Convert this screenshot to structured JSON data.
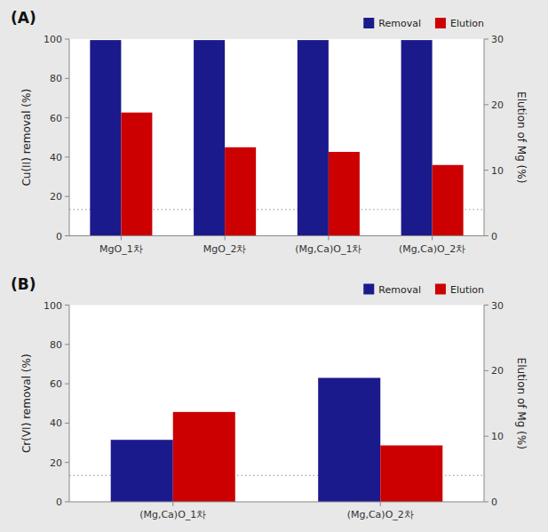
{
  "chart_data": [
    {
      "type": "bar",
      "title": "(A)",
      "categories": [
        "MgO_1차",
        "MgO_2차",
        "(Mg,Ca)O_1차",
        "(Mg,Ca)O_2차"
      ],
      "series": [
        {
          "name": "Removal",
          "color": "#1a1a8c",
          "values": [
            99.5,
            99.5,
            99.5,
            99.5
          ]
        },
        {
          "name": "Elution",
          "color": "#cc0000",
          "values": [
            18.8,
            13.5,
            12.8,
            10.8
          ],
          "axis": "y2"
        }
      ],
      "y_label": "Cu(II) removal (%)",
      "y2_label": "Elution of Mg (%)",
      "ylim": [
        0,
        100
      ],
      "yticks": [
        0,
        20,
        40,
        60,
        80,
        100
      ],
      "y2lim": [
        0,
        30
      ],
      "y2ticks": [
        0,
        10,
        20,
        30
      ],
      "y2_reference_line": 4.0,
      "legend": "upper-right",
      "grid": false
    },
    {
      "type": "bar",
      "title": "(B)",
      "categories": [
        "(Mg,Ca)O_1차",
        "(Mg,Ca)O_2차"
      ],
      "series": [
        {
          "name": "Removal",
          "color": "#1a1a8c",
          "values": [
            31.5,
            63.0
          ]
        },
        {
          "name": "Elution",
          "color": "#cc0000",
          "values": [
            13.7,
            8.6
          ],
          "axis": "y2"
        }
      ],
      "y_label": "Cr(VI) removal (%)",
      "y2_label": "Elution of Mg (%)",
      "ylim": [
        0,
        100
      ],
      "yticks": [
        0,
        20,
        40,
        60,
        80,
        100
      ],
      "y2lim": [
        0,
        30
      ],
      "y2ticks": [
        0,
        10,
        20,
        30
      ],
      "y2_reference_line": 4.0,
      "legend": "upper-right",
      "grid": false
    }
  ]
}
